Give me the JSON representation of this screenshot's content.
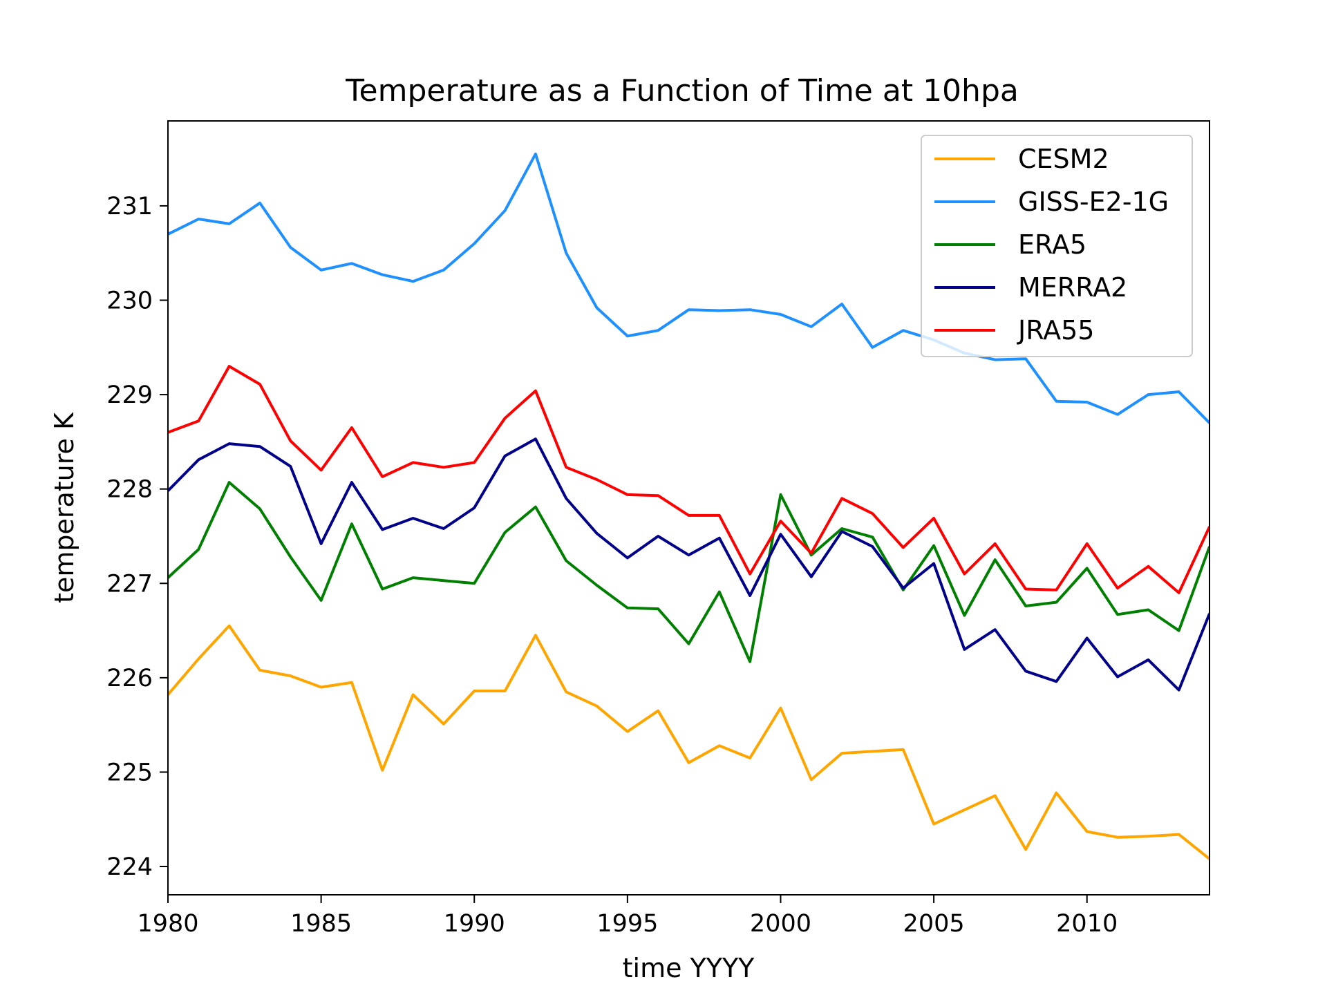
{
  "chart_data": {
    "type": "line",
    "title": "Temperature as a Function of Time at 10hpa",
    "xlabel": "time YYYY",
    "ylabel": "temperature K",
    "xlim": [
      1980,
      2014
    ],
    "ylim": [
      223.7,
      231.9
    ],
    "xticks": [
      1980,
      1985,
      1990,
      1995,
      2000,
      2005,
      2010
    ],
    "yticks": [
      224,
      225,
      226,
      227,
      228,
      229,
      230,
      231
    ],
    "grid": false,
    "legend_position": "top-right",
    "x": [
      1980,
      1981,
      1982,
      1983,
      1984,
      1985,
      1986,
      1987,
      1988,
      1989,
      1990,
      1991,
      1992,
      1993,
      1994,
      1995,
      1996,
      1997,
      1998,
      1999,
      2000,
      2001,
      2002,
      2003,
      2004,
      2005,
      2006,
      2007,
      2008,
      2009,
      2010,
      2011,
      2012,
      2013,
      2014
    ],
    "series": [
      {
        "name": "CESM2",
        "color": "#FFA500",
        "values": [
          225.82,
          226.2,
          226.55,
          226.08,
          226.02,
          225.9,
          225.95,
          225.02,
          225.82,
          225.51,
          225.86,
          225.86,
          226.45,
          225.85,
          225.7,
          225.43,
          225.65,
          225.1,
          225.28,
          225.15,
          225.68,
          224.92,
          225.2,
          225.22,
          225.24,
          224.45,
          224.6,
          224.75,
          224.18,
          224.78,
          224.37,
          224.31,
          224.32,
          224.34,
          224.08
        ]
      },
      {
        "name": "GISS-E2-1G",
        "color": "#1E90FF",
        "values": [
          230.7,
          230.86,
          230.81,
          231.03,
          230.56,
          230.32,
          230.39,
          230.27,
          230.2,
          230.32,
          230.6,
          230.95,
          231.55,
          230.5,
          229.92,
          229.62,
          229.68,
          229.9,
          229.89,
          229.9,
          229.85,
          229.72,
          229.96,
          229.5,
          229.68,
          229.58,
          229.44,
          229.37,
          229.38,
          228.93,
          228.92,
          228.79,
          229.0,
          229.03,
          228.7
        ]
      },
      {
        "name": "ERA5",
        "color": "#008000",
        "values": [
          227.06,
          227.36,
          228.07,
          227.79,
          227.28,
          226.82,
          227.63,
          226.94,
          227.06,
          227.03,
          227.0,
          227.54,
          227.81,
          227.24,
          226.98,
          226.74,
          226.73,
          226.36,
          226.91,
          226.17,
          227.94,
          227.3,
          227.58,
          227.49,
          226.93,
          227.4,
          226.66,
          227.25,
          226.76,
          226.8,
          227.16,
          226.67,
          226.72,
          226.5,
          227.39
        ]
      },
      {
        "name": "MERRA2",
        "color": "#00008B",
        "values": [
          227.98,
          228.31,
          228.48,
          228.45,
          228.24,
          227.42,
          228.07,
          227.57,
          227.69,
          227.58,
          227.8,
          228.35,
          228.53,
          227.9,
          227.53,
          227.27,
          227.5,
          227.3,
          227.48,
          226.87,
          227.52,
          227.07,
          227.55,
          227.39,
          226.95,
          227.21,
          226.3,
          226.51,
          226.07,
          225.96,
          226.42,
          226.01,
          226.19,
          225.87,
          226.68
        ]
      },
      {
        "name": "JRA55",
        "color": "#FF0000",
        "values": [
          228.6,
          228.72,
          229.3,
          229.11,
          228.51,
          228.2,
          228.65,
          228.13,
          228.28,
          228.23,
          228.28,
          228.75,
          229.04,
          228.23,
          228.1,
          227.94,
          227.93,
          227.72,
          227.72,
          227.1,
          227.66,
          227.32,
          227.9,
          227.74,
          227.38,
          227.69,
          227.1,
          227.42,
          226.94,
          226.93,
          227.42,
          226.95,
          227.18,
          226.9,
          227.6
        ]
      }
    ]
  }
}
